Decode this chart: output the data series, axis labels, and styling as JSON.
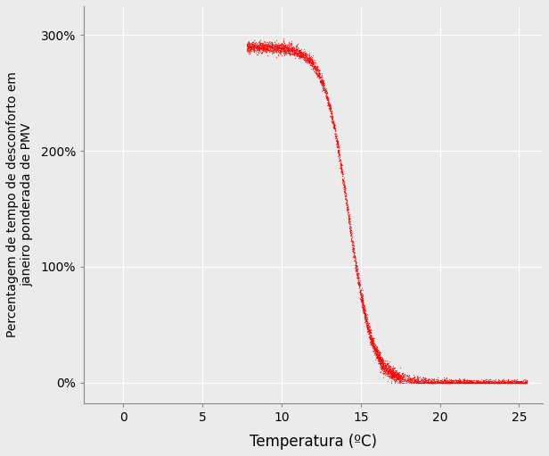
{
  "title": "",
  "xlabel": "Temperatura (ºC)",
  "ylabel": "Percentagem de tempo de desconforto em\njaneiro ponderada de PMV",
  "bg_color": "#EBEBEB",
  "plot_bg_color": "#EBEBEB",
  "point_color": "#FF0000",
  "point_size": 0.8,
  "point_alpha": 0.7,
  "xlim": [
    -2.5,
    26.5
  ],
  "ylim": [
    -0.18,
    3.25
  ],
  "xticks": [
    0,
    5,
    10,
    15,
    20,
    25
  ],
  "yticks": [
    0.0,
    1.0,
    2.0,
    3.0
  ],
  "ytick_labels": [
    "0%",
    "100%",
    "200%",
    "300%"
  ],
  "grid_color": "white",
  "grid_lw": 0.8,
  "n_points": 5000,
  "curve_x_min": 7.8,
  "curve_x_max": 25.5,
  "inflection_x": 14.8,
  "steepness": 0.85,
  "y_max": 2.9,
  "flat_x_start": 17.0,
  "flat_x_max": 25.5
}
